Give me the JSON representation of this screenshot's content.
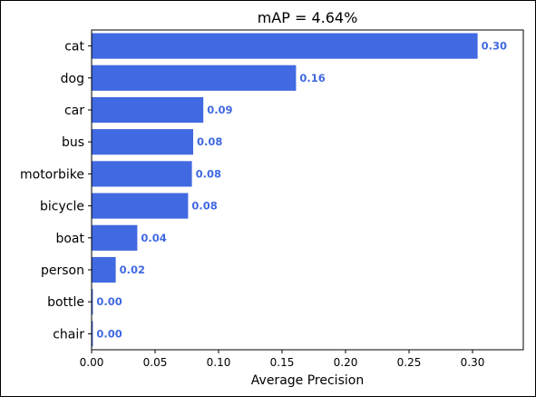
{
  "chart_data": {
    "type": "bar",
    "orientation": "horizontal",
    "title": "mAP = 4.64%",
    "xlabel": "Average Precision",
    "ylabel": "",
    "categories": [
      "cat",
      "dog",
      "car",
      "bus",
      "motorbike",
      "bicycle",
      "boat",
      "person",
      "bottle",
      "chair"
    ],
    "values": [
      0.304,
      0.161,
      0.088,
      0.08,
      0.079,
      0.076,
      0.036,
      0.019,
      0.001,
      0.001
    ],
    "value_labels": [
      "0.30",
      "0.16",
      "0.09",
      "0.08",
      "0.08",
      "0.08",
      "0.04",
      "0.02",
      "0.00",
      "0.00"
    ],
    "xlim": [
      0,
      0.34
    ],
    "xticks": [
      0.0,
      0.05,
      0.1,
      0.15,
      0.2,
      0.25,
      0.3
    ],
    "xtick_labels": [
      "0.00",
      "0.05",
      "0.10",
      "0.15",
      "0.20",
      "0.25",
      "0.30"
    ],
    "grid": false,
    "bar_color": "#4169e1",
    "label_color": "#4169e1"
  }
}
